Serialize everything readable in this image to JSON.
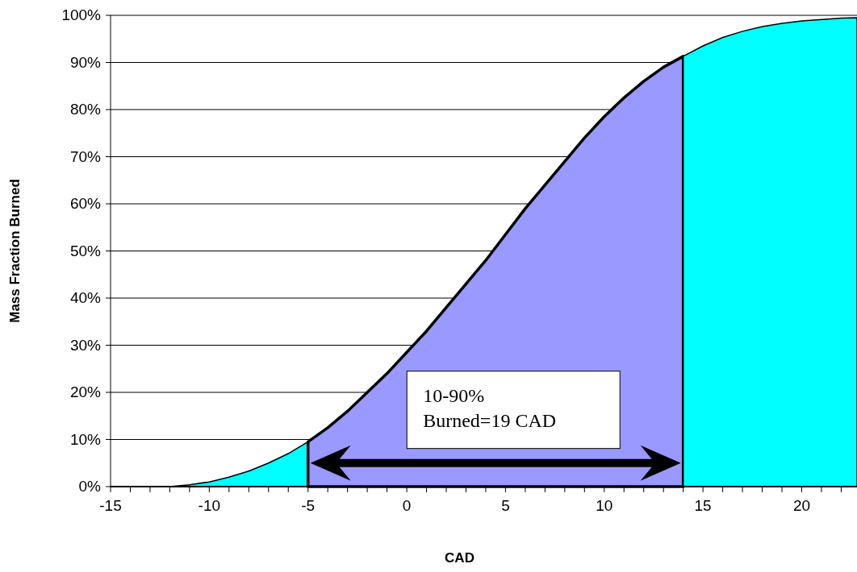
{
  "chart_data": {
    "type": "area",
    "xlabel": "CAD",
    "ylabel": "Mass Fraction Burned",
    "xlim": [
      -15,
      22.8
    ],
    "ylim": [
      0,
      100
    ],
    "xticks": [
      -15,
      {
        "value": -14,
        "label": null
      },
      {
        "value": -13,
        "label": null
      },
      {
        "value": -12,
        "label": null
      },
      {
        "value": -11,
        "label": null
      },
      -10,
      {
        "value": -9,
        "label": null
      },
      {
        "value": -8,
        "label": null
      },
      {
        "value": -7,
        "label": null
      },
      {
        "value": -6,
        "label": null
      },
      -5,
      {
        "value": -4,
        "label": null
      },
      {
        "value": -3,
        "label": null
      },
      {
        "value": -2,
        "label": null
      },
      {
        "value": -1,
        "label": null
      },
      0,
      {
        "value": 1,
        "label": null
      },
      {
        "value": 2,
        "label": null
      },
      {
        "value": 3,
        "label": null
      },
      {
        "value": 4,
        "label": null
      },
      5,
      {
        "value": 6,
        "label": null
      },
      {
        "value": 7,
        "label": null
      },
      {
        "value": 8,
        "label": null
      },
      {
        "value": 9,
        "label": null
      },
      10,
      {
        "value": 11,
        "label": null
      },
      {
        "value": 12,
        "label": null
      },
      {
        "value": 13,
        "label": null
      },
      {
        "value": 14,
        "label": null
      },
      15,
      {
        "value": 16,
        "label": null
      },
      {
        "value": 17,
        "label": null
      },
      {
        "value": 18,
        "label": null
      },
      {
        "value": 19,
        "label": null
      },
      20,
      {
        "value": 21,
        "label": null
      },
      {
        "value": 22,
        "label": null
      }
    ],
    "yticks": [
      {
        "value": 0,
        "label": "0%"
      },
      {
        "value": 10,
        "label": "10%"
      },
      {
        "value": 20,
        "label": "20%"
      },
      {
        "value": 30,
        "label": "30%"
      },
      {
        "value": 40,
        "label": "40%"
      },
      {
        "value": 50,
        "label": "50%"
      },
      {
        "value": 60,
        "label": "60%"
      },
      {
        "value": 70,
        "label": "70%"
      },
      {
        "value": 80,
        "label": "80%"
      },
      {
        "value": 90,
        "label": "90%"
      },
      {
        "value": 100,
        "label": "100%"
      }
    ],
    "grid": "y",
    "series": [
      {
        "color": "#00ffff",
        "x": [
          -15,
          -12,
          -11,
          -10,
          -9,
          -8,
          -7,
          -6,
          -5
        ],
        "values": [
          0,
          0,
          0.4,
          1,
          2,
          3.3,
          5,
          7,
          9.5
        ]
      },
      {
        "color": "#9999ff",
        "x": [
          -5,
          -4,
          -3,
          -2,
          -1,
          0,
          1,
          2,
          3,
          4,
          5,
          6,
          7,
          8,
          9,
          10,
          11,
          12,
          13,
          14
        ],
        "values": [
          9.5,
          12.5,
          16,
          20,
          24,
          28.5,
          33,
          38,
          43,
          48,
          53.5,
          59,
          64,
          69,
          74,
          78.5,
          82.5,
          86,
          89,
          91.3
        ]
      },
      {
        "color": "#00ffff",
        "x": [
          14,
          15,
          16,
          17,
          18,
          19,
          20,
          21,
          22,
          22.8
        ],
        "values": [
          91.3,
          93.5,
          95.3,
          96.6,
          97.6,
          98.3,
          98.8,
          99.1,
          99.4,
          99.5
        ]
      }
    ],
    "annotations": [
      "10-90%\nBurned=19 CAD"
    ]
  }
}
